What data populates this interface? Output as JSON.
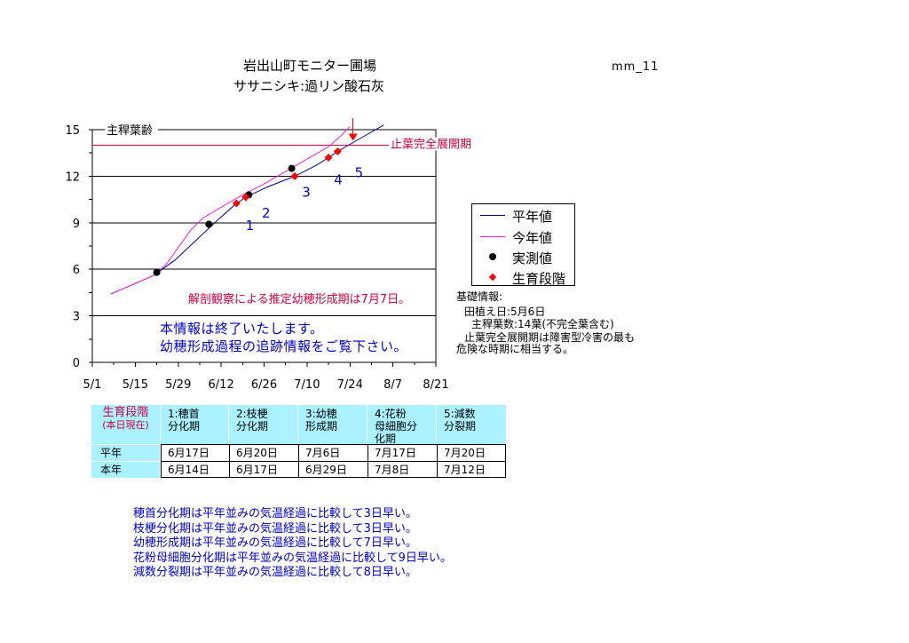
{
  "header": {
    "title": "岩出山町モニター圃場",
    "subtitle": "ササニシキ:過リン酸石灰",
    "code": "mm_11"
  },
  "chart_data": {
    "type": "line",
    "ylabel": "主稈葉齢",
    "xlabel": "",
    "ylim": [
      0,
      15
    ],
    "yticks": [
      0,
      3,
      6,
      9,
      12,
      15
    ],
    "xlim": [
      "5/1",
      "8/21"
    ],
    "xticks": [
      "5/1",
      "5/15",
      "5/29",
      "6/12",
      "6/26",
      "7/10",
      "7/24",
      "8/7",
      "8/21"
    ],
    "grid": true,
    "legend_position": "right",
    "series": [
      {
        "name": "平年値",
        "color": "#000080",
        "x": [
          "5/7",
          "5/14",
          "5/21",
          "5/28",
          "6/4",
          "6/11",
          "6/17",
          "6/20",
          "6/27",
          "7/6",
          "7/13",
          "7/17",
          "7/20",
          "7/27",
          "8/4"
        ],
        "y": [
          4.4,
          5.0,
          5.6,
          6.6,
          7.9,
          9.2,
          10.25,
          10.65,
          11.3,
          12.0,
          12.7,
          13.2,
          13.6,
          14.4,
          15.3
        ]
      },
      {
        "name": "今年値",
        "color": "#ee22dd",
        "x": [
          "5/7",
          "5/14",
          "5/21",
          "5/25",
          "5/29",
          "6/2",
          "6/6",
          "6/12",
          "6/19",
          "6/26",
          "7/3",
          "7/10",
          "7/17",
          "7/21",
          "7/24"
        ],
        "y": [
          4.4,
          5.0,
          5.6,
          6.3,
          7.4,
          8.5,
          9.3,
          10.0,
          10.8,
          11.5,
          12.3,
          13.1,
          13.9,
          14.6,
          15.2
        ]
      },
      {
        "name": "実測値",
        "color": "#000000",
        "marker": "circle",
        "x": [
          "5/22",
          "6/8",
          "6/21",
          "7/5"
        ],
        "y": [
          5.8,
          8.9,
          10.8,
          12.5
        ]
      },
      {
        "name": "生育段階",
        "color": "#ff0000",
        "marker": "diamond",
        "x": [
          "6/17",
          "6/20",
          "7/6",
          "7/17",
          "7/20"
        ],
        "y": [
          10.25,
          10.65,
          12.0,
          13.2,
          13.6
        ],
        "labels": [
          "1",
          "2",
          "3",
          "4",
          "5"
        ]
      }
    ],
    "reference_line": {
      "y": 14,
      "label": "止葉完全展開期",
      "color": "#cc0044"
    },
    "arrow": {
      "x": "7/25",
      "y": 14,
      "color": "#ff0000"
    },
    "annotations": [
      {
        "text": "解剖観察による推定幼穂形成期は7月7日。",
        "color": "#cc0044"
      },
      {
        "text": "本情報は終了いたします。",
        "color": "#0000cc"
      },
      {
        "text": "幼穂形成過程の追跡情報をご覧下さい。",
        "color": "#0000cc"
      }
    ]
  },
  "basic_info": {
    "heading": "基礎情報:",
    "planting": "田植え日:5月6日",
    "leaf_count": "主稈葉数:14葉(不完全葉含む)",
    "note_line1": "止葉完全展開期は障害型冷害の最も",
    "note_line2": "危険な時期に相当する。"
  },
  "stage_table": {
    "header_color": "#aaf2ff",
    "corner": [
      "生育段階",
      "(本日現在)"
    ],
    "stages": [
      [
        "1:穂首",
        "分化期"
      ],
      [
        "2:枝梗",
        "分化期"
      ],
      [
        "3:幼穂",
        "形成期"
      ],
      [
        "4:花粉",
        "母細胞分",
        "化期"
      ],
      [
        "5:減数",
        "分裂期"
      ]
    ],
    "rows": [
      {
        "label": "平年",
        "dates": [
          "6月17日",
          "6月20日",
          "7月6日",
          "7月17日",
          "7月20日"
        ]
      },
      {
        "label": "本年",
        "dates": [
          "6月14日",
          "6月17日",
          "6月29日",
          "7月8日",
          "7月12日"
        ]
      }
    ]
  },
  "summary": [
    "穂首分化期は平年並みの気温経過に比較して3日早い。",
    "枝梗分化期は平年並みの気温経過に比較して3日早い。",
    "幼穂形成期は平年並みの気温経過に比較して7日早い。",
    "花粉母細胞分化期は平年並みの気温経過に比較して9日早い。",
    "減数分裂期は平年並みの気温経過に比較して8日早い。"
  ]
}
